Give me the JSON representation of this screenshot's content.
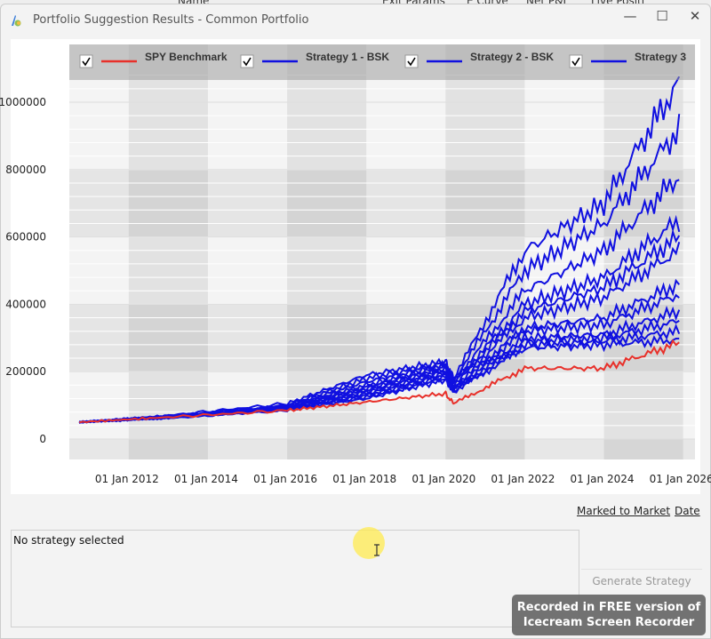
{
  "background_header": [
    "Name",
    "Exit Params",
    "E Curve",
    "Net P&L",
    "Live Positi"
  ],
  "window": {
    "title": "Portfolio Suggestion Results - Common Portfolio",
    "minimize": "—",
    "maximize": "☐",
    "close": "✕"
  },
  "legend": [
    {
      "label": "SPY Benchmark",
      "color": "#e8302a",
      "checked": true
    },
    {
      "label": "Strategy 1 - BSK",
      "color": "#1010e0",
      "checked": true
    },
    {
      "label": "Strategy 2 - BSK",
      "color": "#1010e0",
      "checked": true
    },
    {
      "label": "Strategy 3",
      "color": "#1010e0",
      "checked": true
    }
  ],
  "chart_data": {
    "type": "line",
    "xlim": [
      2010.5,
      2026.3
    ],
    "ylim": [
      -60000,
      1100000
    ],
    "y_ticks": [
      0,
      200000,
      400000,
      600000,
      800000,
      1000000
    ],
    "y_tick_labels": [
      "0",
      "200000",
      "400000",
      "600000",
      "800000",
      "1000000"
    ],
    "x_ticks": [
      2012,
      2014,
      2016,
      2018,
      2020,
      2022,
      2024,
      2026
    ],
    "x_tick_labels": [
      "01 Jan 2012",
      "01 Jan 2014",
      "01 Jan 2016",
      "01 Jan 2018",
      "01 Jan 2020",
      "01 Jan 2022",
      "01 Jan 2024",
      "01 Jan 2026"
    ],
    "grid": true,
    "legend_position": "top",
    "x": [
      2010.75,
      2013,
      2016,
      2018,
      2020,
      2020.2,
      2022,
      2024,
      2025.9
    ],
    "benchmark": {
      "name": "SPY Benchmark",
      "color": "#e8302a",
      "y": [
        50000,
        65000,
        85000,
        110000,
        135000,
        105000,
        210000,
        210000,
        285000
      ]
    },
    "strategy_color": "#1010e0",
    "series": [
      {
        "name": "Strategy 1 - BSK",
        "y": [
          50000,
          70000,
          105000,
          190000,
          230000,
          180000,
          560000,
          700000,
          1060000
        ]
      },
      {
        "name": "Strategy 2 - BSK",
        "y": [
          50000,
          68000,
          100000,
          180000,
          225000,
          175000,
          500000,
          640000,
          920000
        ]
      },
      {
        "name": "Strategy 3",
        "y": [
          50000,
          67000,
          98000,
          170000,
          220000,
          170000,
          440000,
          560000,
          780000
        ]
      },
      {
        "y": [
          50000,
          66000,
          96000,
          160000,
          215000,
          165000,
          400000,
          480000,
          650000
        ]
      },
      {
        "y": [
          50000,
          66000,
          95000,
          155000,
          210000,
          165000,
          380000,
          450000,
          600000
        ]
      },
      {
        "y": [
          50000,
          65000,
          94000,
          150000,
          205000,
          160000,
          360000,
          420000,
          560000
        ]
      },
      {
        "y": [
          50000,
          65000,
          92000,
          145000,
          200000,
          155000,
          330000,
          360000,
          460000
        ]
      },
      {
        "y": [
          50000,
          64000,
          90000,
          140000,
          195000,
          150000,
          320000,
          340000,
          430000
        ]
      },
      {
        "y": [
          50000,
          64000,
          90000,
          135000,
          190000,
          150000,
          300000,
          310000,
          380000
        ]
      },
      {
        "y": [
          50000,
          63000,
          88000,
          130000,
          185000,
          145000,
          290000,
          300000,
          350000
        ]
      },
      {
        "y": [
          50000,
          63000,
          87000,
          125000,
          180000,
          140000,
          280000,
          290000,
          320000
        ]
      },
      {
        "y": [
          50000,
          62000,
          86000,
          120000,
          175000,
          140000,
          270000,
          280000,
          295000
        ]
      }
    ]
  },
  "links": {
    "marked_to_market": "Marked to Market",
    "date": "Date"
  },
  "description": "No strategy selected",
  "generate_button": "Generate Strategy",
  "watermark": [
    "Recorded in FREE version of",
    "Icecream   Screen   Recorder"
  ]
}
